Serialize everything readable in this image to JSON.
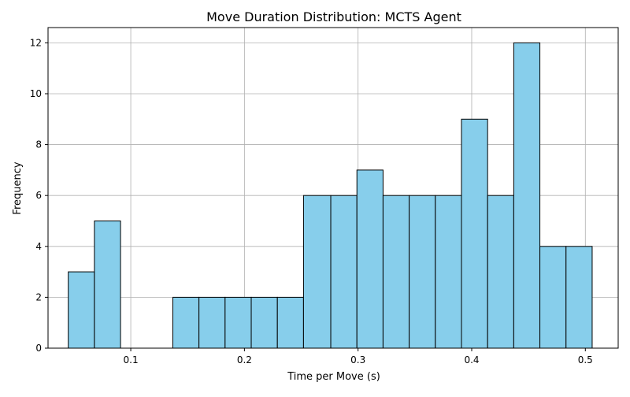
{
  "chart_data": {
    "type": "bar",
    "title": "Move Duration Distribution: MCTS Agent",
    "xlabel": "Time per Move (s)",
    "ylabel": "Frequency",
    "xlim": [
      0.0272,
      0.5289
    ],
    "ylim": [
      0,
      12.6
    ],
    "xticks": [
      0.1,
      0.2,
      0.3,
      0.4,
      0.5
    ],
    "xtick_labels": [
      "0.1",
      "0.2",
      "0.3",
      "0.4",
      "0.5"
    ],
    "yticks": [
      0,
      2,
      4,
      6,
      8,
      10,
      12
    ],
    "ytick_labels": [
      "0",
      "2",
      "4",
      "6",
      "8",
      "10",
      "12"
    ],
    "grid": true,
    "legend": "none",
    "bar_color": "#87ceeb",
    "edge_color": "#000000",
    "bins": [
      {
        "x0": 0.045,
        "x1": 0.068,
        "count": 3
      },
      {
        "x0": 0.068,
        "x1": 0.091,
        "count": 5
      },
      {
        "x0": 0.091,
        "x1": 0.114,
        "count": 0
      },
      {
        "x0": 0.114,
        "x1": 0.137,
        "count": 0
      },
      {
        "x0": 0.137,
        "x1": 0.16,
        "count": 2
      },
      {
        "x0": 0.16,
        "x1": 0.183,
        "count": 2
      },
      {
        "x0": 0.183,
        "x1": 0.206,
        "count": 2
      },
      {
        "x0": 0.206,
        "x1": 0.229,
        "count": 2
      },
      {
        "x0": 0.229,
        "x1": 0.252,
        "count": 2
      },
      {
        "x0": 0.252,
        "x1": 0.276,
        "count": 6
      },
      {
        "x0": 0.276,
        "x1": 0.299,
        "count": 6
      },
      {
        "x0": 0.299,
        "x1": 0.322,
        "count": 7
      },
      {
        "x0": 0.322,
        "x1": 0.345,
        "count": 6
      },
      {
        "x0": 0.345,
        "x1": 0.368,
        "count": 6
      },
      {
        "x0": 0.368,
        "x1": 0.391,
        "count": 6
      },
      {
        "x0": 0.391,
        "x1": 0.414,
        "count": 9
      },
      {
        "x0": 0.414,
        "x1": 0.437,
        "count": 6
      },
      {
        "x0": 0.437,
        "x1": 0.46,
        "count": 12
      },
      {
        "x0": 0.46,
        "x1": 0.483,
        "count": 4
      },
      {
        "x0": 0.483,
        "x1": 0.506,
        "count": 4
      }
    ]
  }
}
